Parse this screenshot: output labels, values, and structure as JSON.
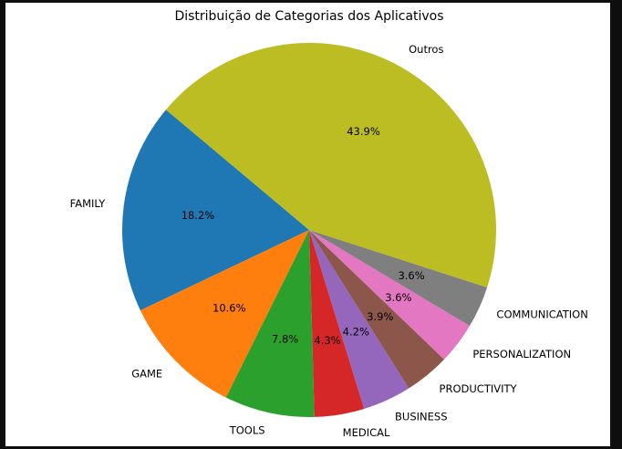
{
  "chart_data": {
    "type": "pie",
    "title": "Distribuição de Categorias dos Aplicativos",
    "slices": [
      {
        "label": "FAMILY",
        "value": 18.2,
        "pct_label": "18.2%",
        "color": "#1f77b4"
      },
      {
        "label": "GAME",
        "value": 10.6,
        "pct_label": "10.6%",
        "color": "#ff7f0e"
      },
      {
        "label": "TOOLS",
        "value": 7.8,
        "pct_label": "7.8%",
        "color": "#2ca02c"
      },
      {
        "label": "MEDICAL",
        "value": 4.3,
        "pct_label": "4.3%",
        "color": "#d62728"
      },
      {
        "label": "BUSINESS",
        "value": 4.2,
        "pct_label": "4.2%",
        "color": "#9467bd"
      },
      {
        "label": "PRODUCTIVITY",
        "value": 3.9,
        "pct_label": "3.9%",
        "color": "#8c564b"
      },
      {
        "label": "PERSONALIZATION",
        "value": 3.6,
        "pct_label": "3.6%",
        "color": "#e377c2"
      },
      {
        "label": "COMMUNICATION",
        "value": 3.6,
        "pct_label": "3.6%",
        "color": "#7f7f7f"
      },
      {
        "label": "Outros",
        "value": 43.9,
        "pct_label": "43.9%",
        "color": "#bcbd22"
      }
    ],
    "start_angle_deg": 140,
    "direction": "counterclockwise"
  }
}
